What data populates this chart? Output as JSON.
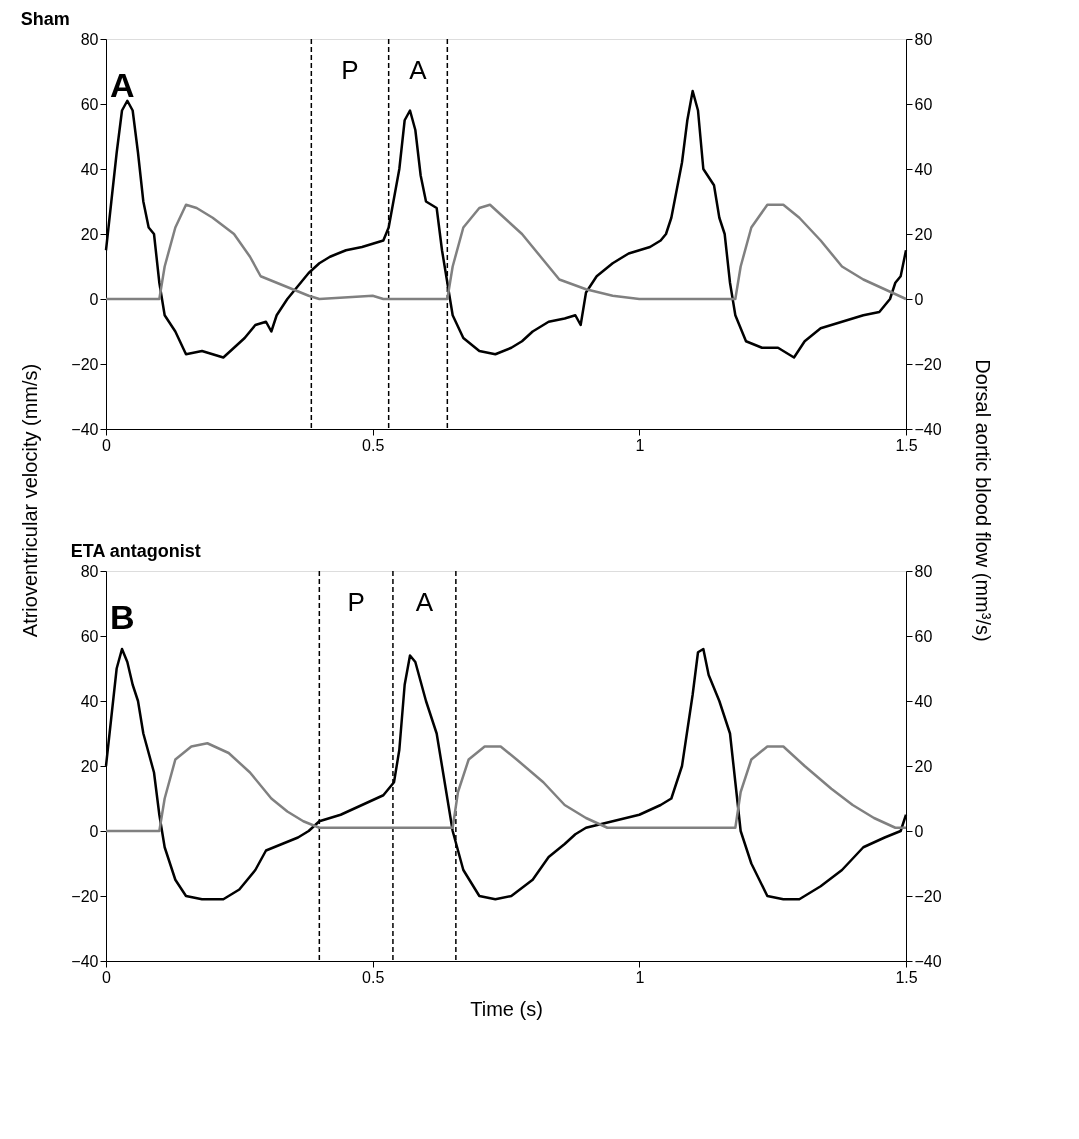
{
  "chart_data": [
    {
      "type": "line",
      "title": "Sham",
      "ylabel": "Atrioventricular velocity (mm/s)",
      "y2label": "Dorsal aortic blood flow (mm³/s)",
      "xlim": [
        0,
        1.5
      ],
      "xticks": [
        0,
        0.5,
        1,
        1.5
      ],
      "ylim": [
        -40,
        80
      ],
      "yticks": [
        -40,
        -20,
        0,
        20,
        40,
        60,
        80
      ],
      "y2lim": [
        -40,
        80
      ],
      "y2ticks": [
        -40,
        -20,
        0,
        20,
        40,
        60,
        80
      ],
      "grid": false,
      "line_style": "solid",
      "series": [
        {
          "color": "#000000",
          "x": [
            0,
            0.01,
            0.02,
            0.03,
            0.04,
            0.05,
            0.06,
            0.07,
            0.08,
            0.09,
            0.1,
            0.11,
            0.13,
            0.15,
            0.18,
            0.2,
            0.22,
            0.24,
            0.26,
            0.28,
            0.3,
            0.31,
            0.32,
            0.34,
            0.36,
            0.38,
            0.4,
            0.42,
            0.45,
            0.48,
            0.5,
            0.52,
            0.53,
            0.55,
            0.56,
            0.57,
            0.58,
            0.59,
            0.6,
            0.62,
            0.63,
            0.64,
            0.65,
            0.67,
            0.7,
            0.73,
            0.76,
            0.78,
            0.8,
            0.83,
            0.86,
            0.88,
            0.89,
            0.9,
            0.92,
            0.95,
            0.98,
            1.0,
            1.02,
            1.04,
            1.05,
            1.06,
            1.08,
            1.09,
            1.1,
            1.11,
            1.12,
            1.14,
            1.15,
            1.16,
            1.17,
            1.18,
            1.2,
            1.23,
            1.26,
            1.29,
            1.31,
            1.34,
            1.38,
            1.42,
            1.45,
            1.47,
            1.48,
            1.49,
            1.5
          ],
          "values": [
            15,
            30,
            45,
            58,
            61,
            58,
            45,
            30,
            22,
            20,
            5,
            -5,
            -10,
            -17,
            -16,
            -17,
            -18,
            -15,
            -12,
            -8,
            -7,
            -10,
            -5,
            0,
            4,
            8,
            11,
            13,
            15,
            16,
            17,
            18,
            22,
            40,
            55,
            58,
            52,
            38,
            30,
            28,
            15,
            5,
            -5,
            -12,
            -16,
            -17,
            -15,
            -13,
            -10,
            -7,
            -6,
            -5,
            -8,
            2,
            7,
            11,
            14,
            15,
            16,
            18,
            20,
            25,
            42,
            55,
            64,
            58,
            40,
            35,
            25,
            20,
            5,
            -5,
            -13,
            -15,
            -15,
            -18,
            -13,
            -9,
            -7,
            -5,
            -4,
            0,
            5,
            7,
            15
          ]
        },
        {
          "color": "#808080",
          "axis": "y2",
          "x": [
            0,
            0.1,
            0.11,
            0.13,
            0.15,
            0.17,
            0.2,
            0.24,
            0.27,
            0.29,
            0.32,
            0.35,
            0.38,
            0.4,
            0.5,
            0.52,
            0.64,
            0.65,
            0.67,
            0.7,
            0.72,
            0.74,
            0.78,
            0.82,
            0.85,
            0.9,
            0.95,
            1.0,
            1.1,
            1.18,
            1.19,
            1.21,
            1.24,
            1.27,
            1.3,
            1.34,
            1.38,
            1.42,
            1.46,
            1.5
          ],
          "values": [
            0,
            0,
            10,
            22,
            29,
            28,
            25,
            20,
            13,
            7,
            5,
            3,
            1,
            0,
            1,
            0,
            0,
            10,
            22,
            28,
            29,
            26,
            20,
            12,
            6,
            3,
            1,
            0,
            0,
            0,
            10,
            22,
            29,
            29,
            25,
            18,
            10,
            6,
            3,
            0
          ]
        }
      ],
      "ref_lines": [
        {
          "axis": "x",
          "value": 0.385,
          "color": "#000000",
          "line_style": "dashed"
        },
        {
          "axis": "x",
          "value": 0.53,
          "color": "#000000",
          "line_style": "dashed"
        },
        {
          "axis": "x",
          "value": 0.64,
          "color": "#000000",
          "line_style": "dashed"
        }
      ],
      "annotations": [
        "A",
        "P",
        "A"
      ]
    },
    {
      "type": "line",
      "title": "ETA antagonist",
      "xlabel": "Time (s)",
      "xlim": [
        0,
        1.5
      ],
      "xticks": [
        0,
        0.5,
        1,
        1.5
      ],
      "ylim": [
        -40,
        80
      ],
      "yticks": [
        -40,
        -20,
        0,
        20,
        40,
        60,
        80
      ],
      "y2lim": [
        -40,
        80
      ],
      "y2ticks": [
        -40,
        -20,
        0,
        20,
        40,
        60,
        80
      ],
      "grid": false,
      "line_style": "solid",
      "series": [
        {
          "color": "#000000",
          "x": [
            0,
            0.01,
            0.02,
            0.03,
            0.04,
            0.05,
            0.06,
            0.07,
            0.09,
            0.1,
            0.11,
            0.13,
            0.15,
            0.18,
            0.22,
            0.25,
            0.28,
            0.3,
            0.33,
            0.36,
            0.38,
            0.4,
            0.44,
            0.48,
            0.52,
            0.54,
            0.55,
            0.56,
            0.57,
            0.58,
            0.6,
            0.62,
            0.63,
            0.64,
            0.65,
            0.67,
            0.7,
            0.73,
            0.76,
            0.8,
            0.83,
            0.86,
            0.88,
            0.9,
            0.95,
            1.0,
            1.04,
            1.06,
            1.08,
            1.1,
            1.11,
            1.12,
            1.13,
            1.15,
            1.17,
            1.18,
            1.19,
            1.21,
            1.24,
            1.27,
            1.3,
            1.34,
            1.38,
            1.42,
            1.46,
            1.49,
            1.5
          ],
          "values": [
            20,
            35,
            50,
            56,
            52,
            45,
            40,
            30,
            18,
            5,
            -5,
            -15,
            -20,
            -21,
            -21,
            -18,
            -12,
            -6,
            -4,
            -2,
            0,
            3,
            5,
            8,
            11,
            15,
            25,
            45,
            54,
            52,
            40,
            30,
            20,
            10,
            0,
            -12,
            -20,
            -21,
            -20,
            -15,
            -8,
            -4,
            -1,
            1,
            3,
            5,
            8,
            10,
            20,
            42,
            55,
            56,
            48,
            40,
            30,
            15,
            0,
            -10,
            -20,
            -21,
            -21,
            -17,
            -12,
            -5,
            -2,
            0,
            5
          ]
        },
        {
          "color": "#808080",
          "axis": "y2",
          "x": [
            0,
            0.1,
            0.11,
            0.13,
            0.16,
            0.19,
            0.23,
            0.27,
            0.31,
            0.34,
            0.37,
            0.4,
            0.5,
            0.65,
            0.66,
            0.68,
            0.71,
            0.74,
            0.77,
            0.82,
            0.86,
            0.9,
            0.94,
            1.0,
            1.1,
            1.18,
            1.19,
            1.21,
            1.24,
            1.27,
            1.31,
            1.36,
            1.4,
            1.44,
            1.48,
            1.5
          ],
          "values": [
            0,
            0,
            10,
            22,
            26,
            27,
            24,
            18,
            10,
            6,
            3,
            1,
            1,
            1,
            12,
            22,
            26,
            26,
            22,
            15,
            8,
            4,
            1,
            1,
            1,
            1,
            12,
            22,
            26,
            26,
            20,
            13,
            8,
            4,
            1,
            1
          ]
        }
      ],
      "ref_lines": [
        {
          "axis": "x",
          "value": 0.4,
          "color": "#000000",
          "line_style": "dashed"
        },
        {
          "axis": "x",
          "value": 0.538,
          "color": "#000000",
          "line_style": "dashed"
        },
        {
          "axis": "x",
          "value": 0.656,
          "color": "#000000",
          "line_style": "dashed"
        }
      ],
      "annotations": [
        "B",
        "P",
        "A"
      ]
    }
  ]
}
